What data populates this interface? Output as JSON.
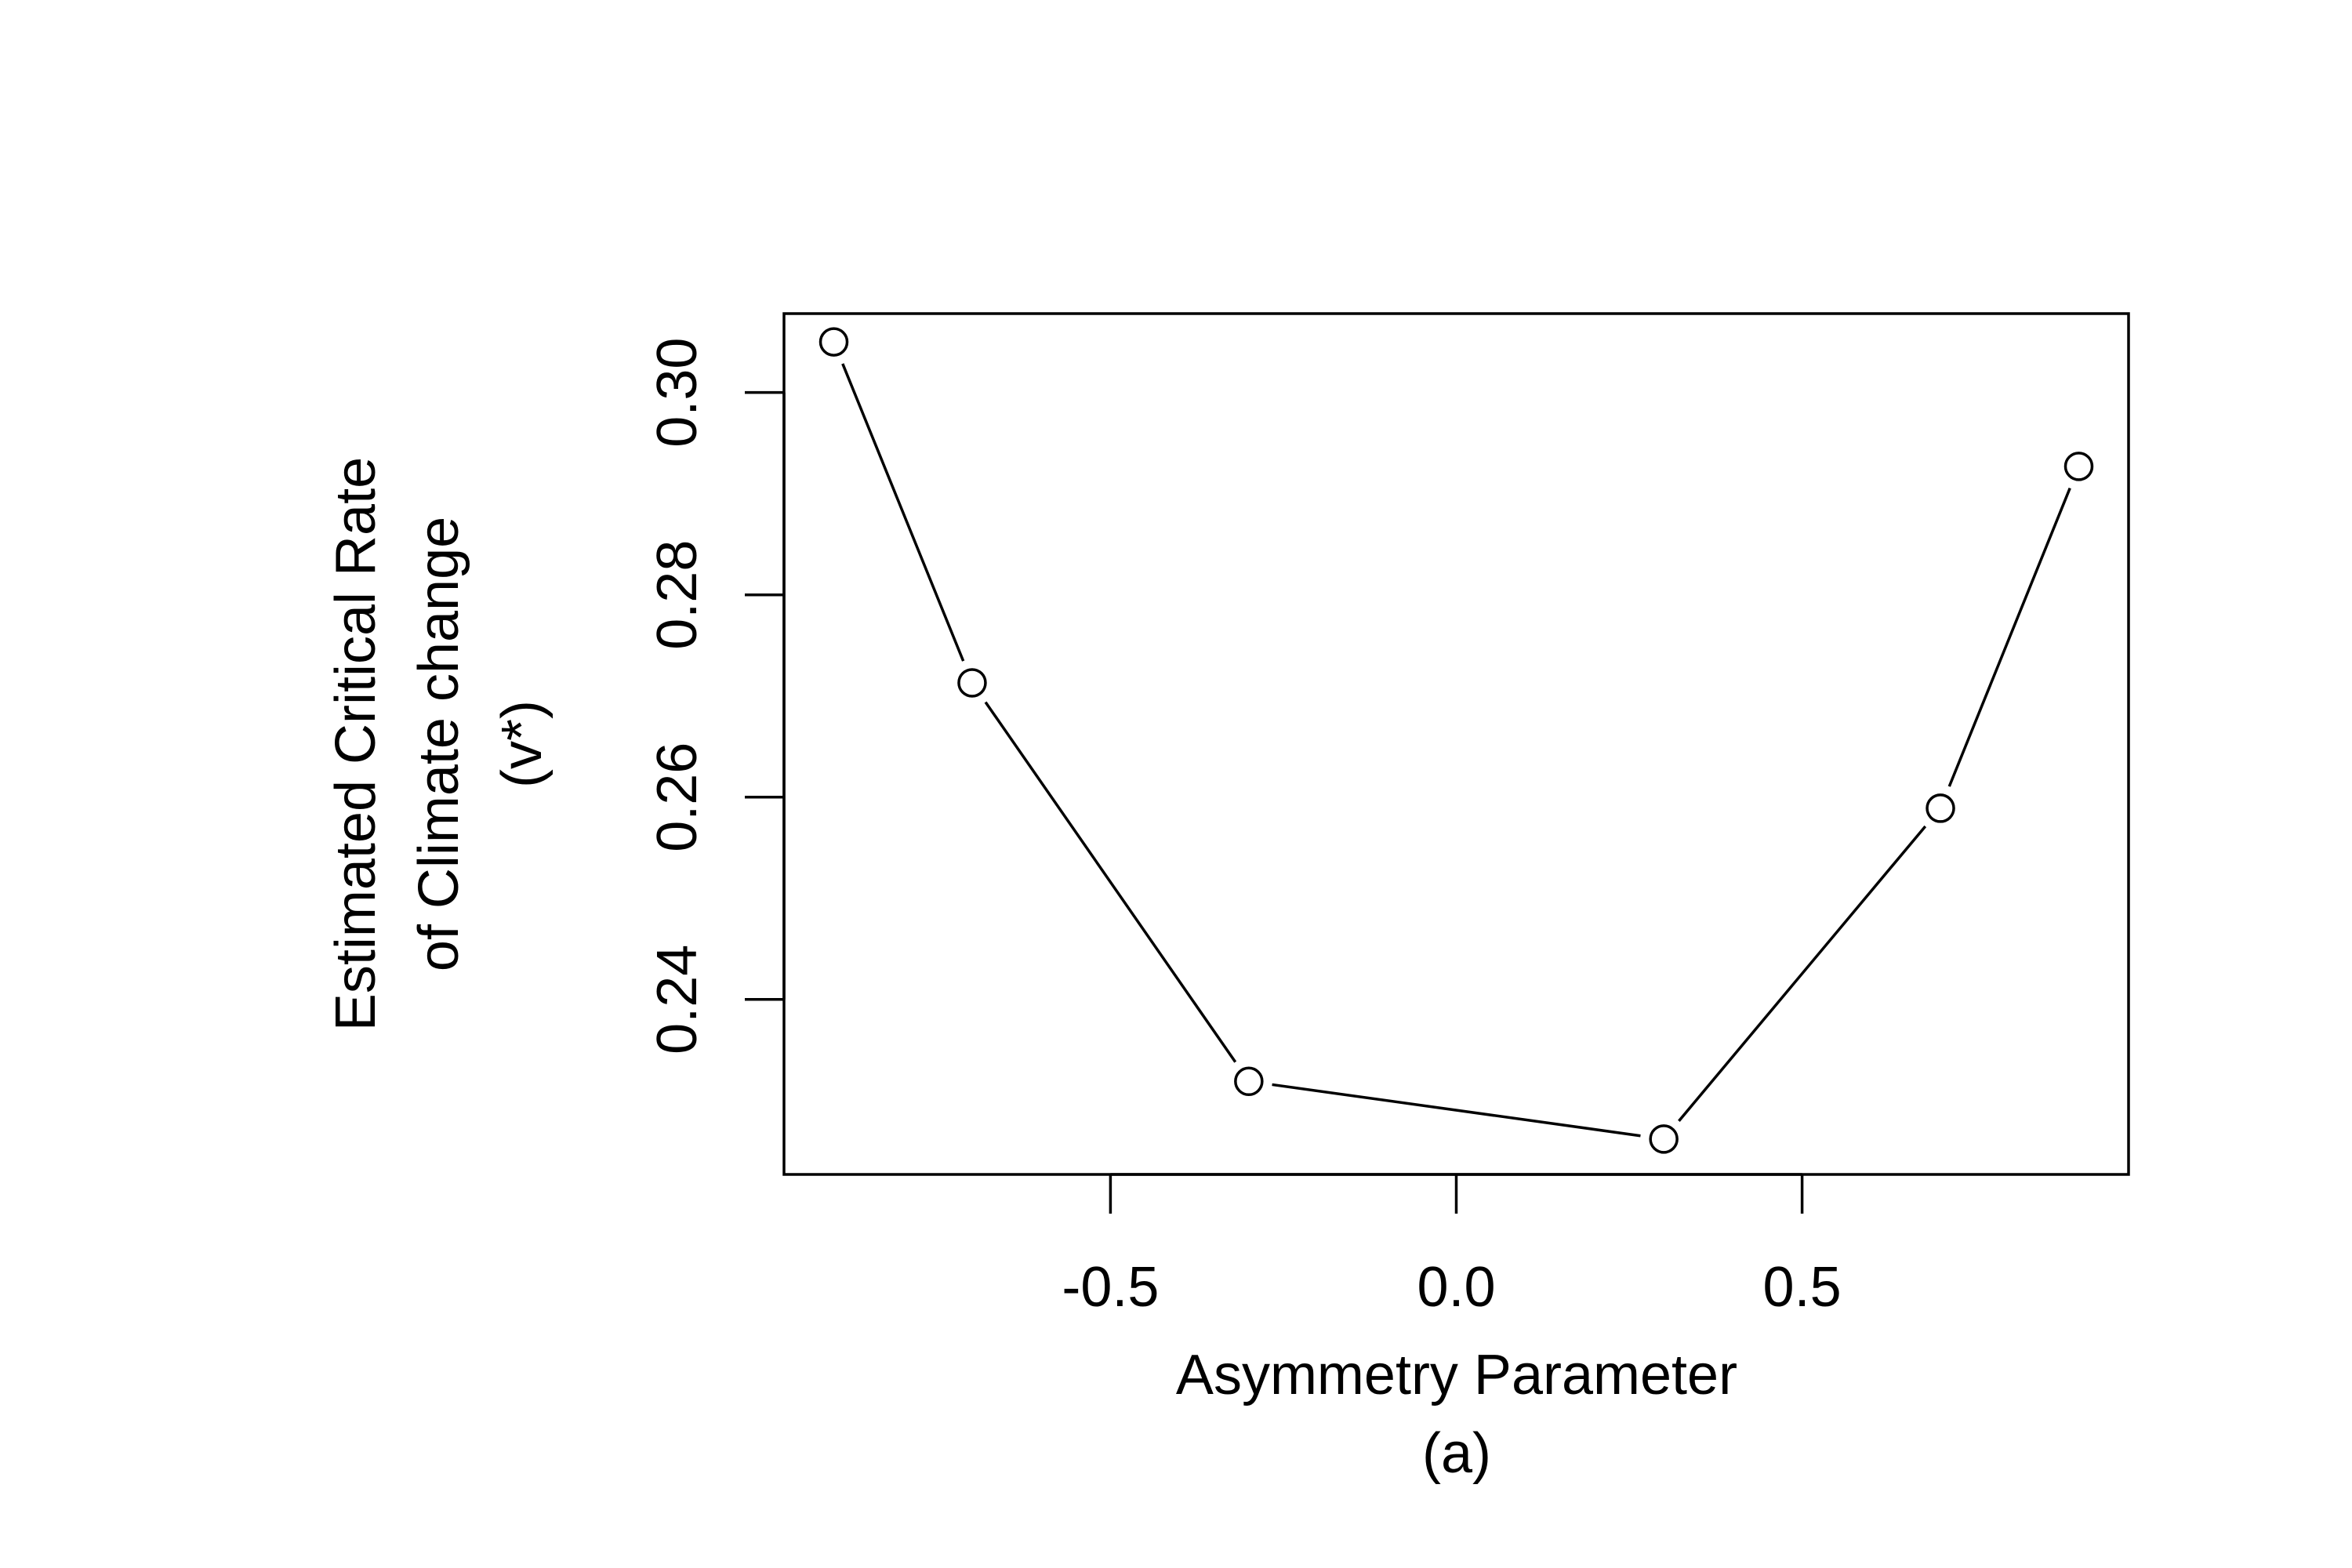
{
  "chart_data": {
    "type": "line",
    "xlabel": "Asymmetry Parameter",
    "caption": "(a)",
    "ylabel_lines": [
      "Estimated Critical Rate",
      "of Climate change",
      "(v*)"
    ],
    "x": [
      -0.9,
      -0.7,
      -0.3,
      0.3,
      0.7,
      0.9
    ],
    "y": [
      0.305,
      0.2713,
      0.2319,
      0.2262,
      0.2589,
      0.2927
    ],
    "xlim": [
      -0.972,
      0.972
    ],
    "ylim": [
      0.2227,
      0.3078
    ],
    "xticks": [
      -0.5,
      0.0,
      0.5
    ],
    "xtick_labels": [
      "-0.5",
      "0.0",
      "0.5"
    ],
    "yticks": [
      0.24,
      0.26,
      0.28,
      0.3
    ],
    "ytick_labels": [
      "0.24",
      "0.26",
      "0.28",
      "0.30"
    ],
    "marker": "open-circle",
    "line_color": "#000000",
    "grid": false,
    "legend": "none"
  }
}
